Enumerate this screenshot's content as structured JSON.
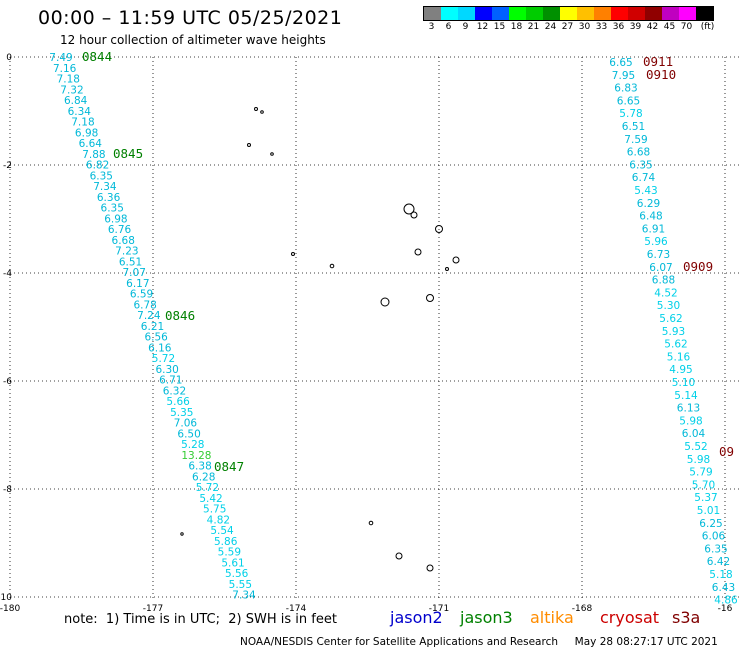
{
  "title": "00:00 – 11:59 UTC 05/25/2021",
  "subtitle": "12 hour collection of altimeter wave heights",
  "legend": {
    "colors": [
      "#808080",
      "#00ffff",
      "#00d8ff",
      "#0000ff",
      "#0060ff",
      "#00ff00",
      "#00cc00",
      "#009000",
      "#ffff00",
      "#ffc000",
      "#ff8000",
      "#ff0000",
      "#d00000",
      "#900000",
      "#c000c0",
      "#ff00ff",
      "#000000"
    ],
    "labels": [
      "3",
      "6",
      "9",
      "12",
      "15",
      "18",
      "21",
      "24",
      "27",
      "30",
      "33",
      "36",
      "39",
      "42",
      "45",
      "70",
      "(ft)"
    ]
  },
  "axes": {
    "x_ticks": [
      "-180",
      "-177",
      "-174",
      "-171",
      "-168",
      "-16"
    ],
    "y_ticks": [
      "0",
      "-2",
      "-4",
      "-6",
      "-8",
      "-10"
    ]
  },
  "track1": {
    "times": [
      {
        "text": "0844",
        "color": "#008000"
      },
      {
        "text": "0845",
        "color": "#008000"
      },
      {
        "text": "0846",
        "color": "#008000"
      },
      {
        "text": "0847",
        "color": "#008000"
      }
    ],
    "values": [
      "7.49",
      "7.16",
      "7.18",
      "7.32",
      "6.84",
      "6.34",
      "7.18",
      "6.98",
      "6.64",
      "7.88",
      "6.82",
      "6.35",
      "7.34",
      "6.36",
      "6.35",
      "6.98",
      "6.76",
      "6.68",
      "7.23",
      "6.51",
      "7.07",
      "6.17",
      "6.59",
      "6.78",
      "7.24",
      "6.21",
      "6.56",
      "6.16",
      "5.72",
      "6.30",
      "6.71",
      "6.32",
      "5.66",
      "5.35",
      "7.06",
      "6.50",
      "5.28",
      "13.28",
      "6.38",
      "6.28",
      "5.72",
      "5.42",
      "5.75",
      "4.82",
      "5.54",
      "5.86",
      "5.59",
      "5.61",
      "5.56",
      "5.55",
      "7.34"
    ]
  },
  "track2": {
    "times": [
      {
        "text": "0911",
        "color": "#800000"
      },
      {
        "text": "0910",
        "color": "#800000"
      },
      {
        "text": "0909",
        "color": "#800000"
      },
      {
        "text": "09",
        "color": "#800000"
      }
    ],
    "values": [
      "6.65",
      "7.95",
      "6.83",
      "6.65",
      "5.78",
      "6.51",
      "7.59",
      "6.68",
      "6.35",
      "6.74",
      "5.43",
      "6.29",
      "6.48",
      "6.91",
      "5.96",
      "6.73",
      "6.07",
      "6.88",
      "4.52",
      "5.30",
      "5.62",
      "5.93",
      "5.62",
      "5.16",
      "4.95",
      "5.10",
      "5.14",
      "6.13",
      "5.98",
      "6.04",
      "5.52",
      "5.98",
      "5.79",
      "5.70",
      "5.37",
      "5.01",
      "6.25",
      "6.06",
      "6.35",
      "6.42",
      "5.18",
      "6.43",
      "4.86"
    ]
  },
  "note": "note:  1) Time is in UTC;  2) SWH is in feet",
  "satellites": [
    {
      "name": "jason2",
      "color": "#0000cc"
    },
    {
      "name": "jason3",
      "color": "#008000"
    },
    {
      "name": "altika",
      "color": "#ff8c00"
    },
    {
      "name": "cryosat",
      "color": "#cc0000"
    },
    {
      "name": "s3a",
      "color": "#800000"
    }
  ],
  "footer": "NOAA/NESDIS Center for Satellite Applications and Research     May 28 08:27:17 UTC 2021"
}
